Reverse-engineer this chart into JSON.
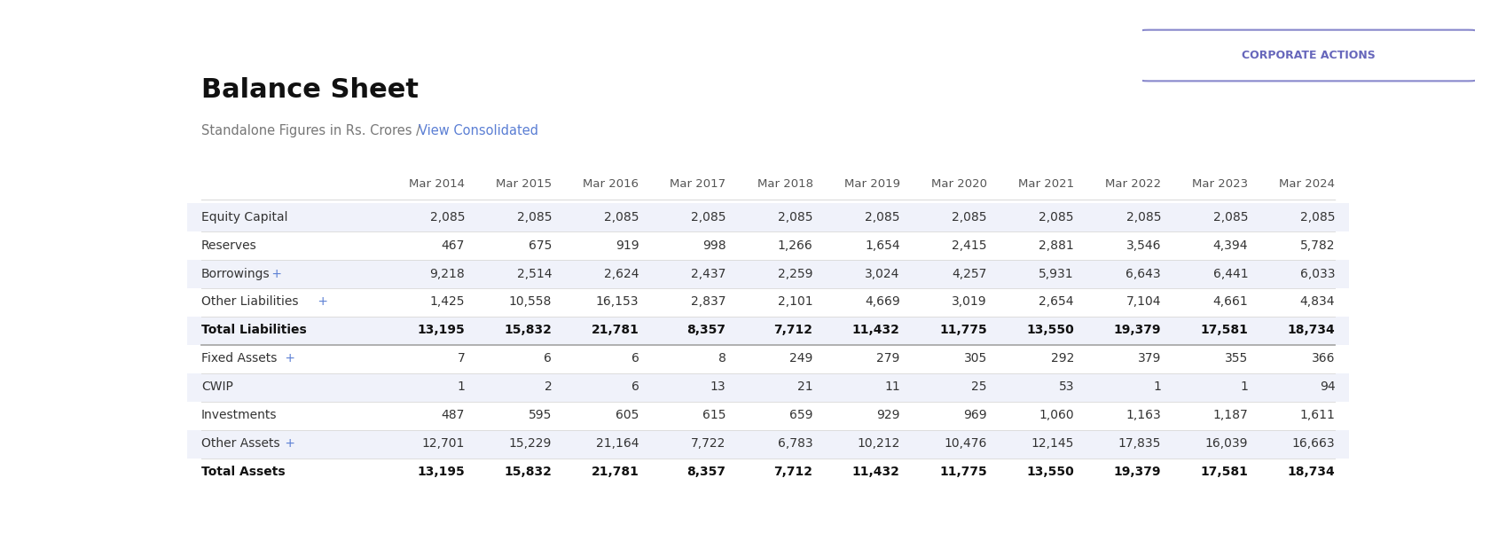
{
  "title": "Balance Sheet",
  "subtitle_plain": "Standalone Figures in Rs. Crores / ",
  "subtitle_link": "View Consolidated",
  "button_text": "CORPORATE ACTIONS",
  "columns": [
    "",
    "Mar 2014",
    "Mar 2015",
    "Mar 2016",
    "Mar 2017",
    "Mar 2018",
    "Mar 2019",
    "Mar 2020",
    "Mar 2021",
    "Mar 2022",
    "Mar 2023",
    "Mar 2024"
  ],
  "rows": [
    {
      "label": "Equity Capital",
      "label_suffix": "",
      "bold": false,
      "blue_suffix": false,
      "values": [
        "2,085",
        "2,085",
        "2,085",
        "2,085",
        "2,085",
        "2,085",
        "2,085",
        "2,085",
        "2,085",
        "2,085",
        "2,085"
      ],
      "highlight": true
    },
    {
      "label": "Reserves",
      "label_suffix": "",
      "bold": false,
      "blue_suffix": false,
      "values": [
        "467",
        "675",
        "919",
        "998",
        "1,266",
        "1,654",
        "2,415",
        "2,881",
        "3,546",
        "4,394",
        "5,782"
      ],
      "highlight": false
    },
    {
      "label": "Borrowings",
      "label_suffix": " +",
      "bold": false,
      "blue_suffix": true,
      "values": [
        "9,218",
        "2,514",
        "2,624",
        "2,437",
        "2,259",
        "3,024",
        "4,257",
        "5,931",
        "6,643",
        "6,441",
        "6,033"
      ],
      "highlight": true
    },
    {
      "label": "Other Liabilities",
      "label_suffix": " +",
      "bold": false,
      "blue_suffix": true,
      "values": [
        "1,425",
        "10,558",
        "16,153",
        "2,837",
        "2,101",
        "4,669",
        "3,019",
        "2,654",
        "7,104",
        "4,661",
        "4,834"
      ],
      "highlight": false
    },
    {
      "label": "Total Liabilities",
      "label_suffix": "",
      "bold": true,
      "blue_suffix": false,
      "values": [
        "13,195",
        "15,832",
        "21,781",
        "8,357",
        "7,712",
        "11,432",
        "11,775",
        "13,550",
        "19,379",
        "17,581",
        "18,734"
      ],
      "highlight": true
    },
    {
      "label": "Fixed Assets",
      "label_suffix": " +",
      "bold": false,
      "blue_suffix": true,
      "values": [
        "7",
        "6",
        "6",
        "8",
        "249",
        "279",
        "305",
        "292",
        "379",
        "355",
        "366"
      ],
      "highlight": false
    },
    {
      "label": "CWIP",
      "label_suffix": "",
      "bold": false,
      "blue_suffix": false,
      "values": [
        "1",
        "2",
        "6",
        "13",
        "21",
        "11",
        "25",
        "53",
        "1",
        "1",
        "94"
      ],
      "highlight": true
    },
    {
      "label": "Investments",
      "label_suffix": "",
      "bold": false,
      "blue_suffix": false,
      "values": [
        "487",
        "595",
        "605",
        "615",
        "659",
        "929",
        "969",
        "1,060",
        "1,163",
        "1,187",
        "1,611"
      ],
      "highlight": false
    },
    {
      "label": "Other Assets",
      "label_suffix": " +",
      "bold": false,
      "blue_suffix": true,
      "values": [
        "12,701",
        "15,229",
        "21,164",
        "7,722",
        "6,783",
        "10,212",
        "10,476",
        "12,145",
        "17,835",
        "16,039",
        "16,663"
      ],
      "highlight": true
    },
    {
      "label": "Total Assets",
      "label_suffix": "",
      "bold": true,
      "blue_suffix": false,
      "values": [
        "13,195",
        "15,832",
        "21,781",
        "8,357",
        "7,712",
        "11,432",
        "11,775",
        "13,550",
        "19,379",
        "17,581",
        "18,734"
      ],
      "highlight": false
    }
  ],
  "bg_color": "#ffffff",
  "header_text_color": "#555555",
  "row_text_color": "#333333",
  "bold_text_color": "#111111",
  "blue_color": "#5b7fd4",
  "highlight_color": "#f0f2fa",
  "separator_color": "#dddddd",
  "bold_separator_color": "#aaaaaa",
  "title_color": "#111111",
  "subtitle_color": "#777777",
  "button_border_color": "#8888cc",
  "button_text_color": "#6666bb"
}
